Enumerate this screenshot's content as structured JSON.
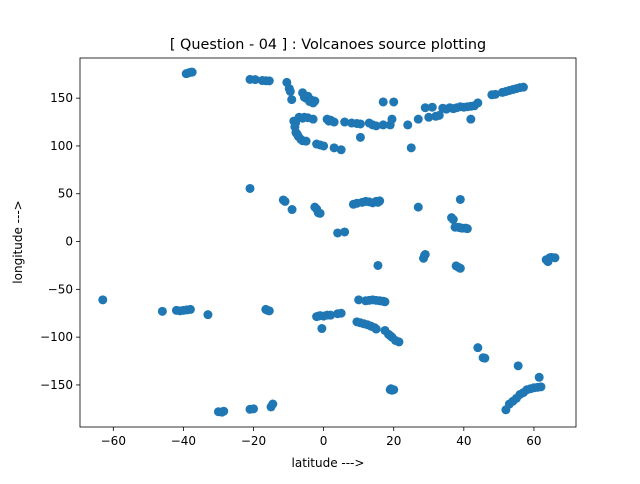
{
  "chart_data": {
    "type": "scatter",
    "title": "[ Question - 04 ] : Volcanoes source plotting",
    "xlabel": "latitude --->",
    "ylabel": "longitude --->",
    "xlim": [
      -69.5,
      72
    ],
    "ylim": [
      -194,
      192
    ],
    "xticks": [
      -60,
      -40,
      -20,
      0,
      20,
      40,
      60
    ],
    "yticks": [
      150,
      100,
      50,
      0,
      -50,
      -100,
      -150
    ],
    "xtick_labels": [
      "−60",
      "−40",
      "−20",
      "0",
      "20",
      "40",
      "60"
    ],
    "ytick_labels": [
      "150",
      "100",
      "50",
      "0",
      "−50",
      "−100",
      "−150"
    ],
    "grid": false,
    "marker_color": "#1f77b4",
    "series": [
      {
        "points": [
          [
            -39.2,
            175.6
          ],
          [
            -38.5,
            176.5
          ],
          [
            -37.9,
            177.1
          ],
          [
            -37.5,
            177.2
          ],
          [
            -21.0,
            169.6
          ],
          [
            -19.5,
            169.4
          ],
          [
            -17.5,
            168.4
          ],
          [
            -16.5,
            168.2
          ],
          [
            -15.5,
            168.1
          ],
          [
            -10.5,
            166.5
          ],
          [
            -9.8,
            160.0
          ],
          [
            -9.5,
            157.0
          ],
          [
            -9.1,
            148.5
          ],
          [
            -6.0,
            155.6
          ],
          [
            -5.5,
            151.0
          ],
          [
            -5.0,
            150.0
          ],
          [
            -4.5,
            152.0
          ],
          [
            -4.0,
            146.5
          ],
          [
            -3.5,
            148.0
          ],
          [
            -3.0,
            145.0
          ],
          [
            -2.5,
            147.0
          ],
          [
            -8.5,
            126.0
          ],
          [
            -8.2,
            120.0
          ],
          [
            -8.0,
            124.0
          ],
          [
            -7.5,
            112.0
          ],
          [
            -7.9,
            114.0
          ],
          [
            -7.2,
            110.0
          ],
          [
            -6.5,
            107.0
          ],
          [
            -6.0,
            105.5
          ],
          [
            -5.0,
            105.0
          ],
          [
            -7.0,
            130.0
          ],
          [
            -6.0,
            129.0
          ],
          [
            -5.5,
            130.0
          ],
          [
            -4.5,
            129.5
          ],
          [
            -3.0,
            128.0
          ],
          [
            -2.0,
            102.0
          ],
          [
            -1.0,
            101.0
          ],
          [
            0.0,
            100.0
          ],
          [
            3.0,
            98.0
          ],
          [
            5.0,
            96.0
          ],
          [
            1.0,
            128.0
          ],
          [
            1.5,
            126.0
          ],
          [
            2.0,
            127.0
          ],
          [
            3.0,
            125.0
          ],
          [
            6.0,
            125.0
          ],
          [
            8.0,
            124.0
          ],
          [
            9.5,
            123.5
          ],
          [
            10.5,
            123.0
          ],
          [
            13.0,
            124.0
          ],
          [
            14.0,
            122.0
          ],
          [
            15.0,
            121.0
          ],
          [
            17.0,
            122.0
          ],
          [
            19.0,
            122.0
          ],
          [
            10.5,
            109.0
          ],
          [
            17.0,
            146.0
          ],
          [
            20.0,
            146.0
          ],
          [
            19.5,
            128.0
          ],
          [
            24.0,
            122.0
          ],
          [
            25.0,
            98.0
          ],
          [
            27.0,
            128.0
          ],
          [
            29.0,
            140.0
          ],
          [
            30.0,
            130.0
          ],
          [
            31.0,
            140.5
          ],
          [
            32.0,
            131.0
          ],
          [
            33.0,
            132.0
          ],
          [
            34.0,
            139.5
          ],
          [
            35.0,
            138.5
          ],
          [
            36.0,
            140.0
          ],
          [
            37.0,
            139.0
          ],
          [
            38.0,
            140.0
          ],
          [
            39.0,
            141.0
          ],
          [
            40.0,
            140.5
          ],
          [
            41.0,
            141.0
          ],
          [
            42.0,
            141.5
          ],
          [
            43.0,
            142.0
          ],
          [
            44.0,
            145.0
          ],
          [
            42.0,
            128.0
          ],
          [
            48.0,
            153.5
          ],
          [
            49.0,
            154.0
          ],
          [
            51.0,
            156.0
          ],
          [
            52.0,
            157.0
          ],
          [
            53.0,
            158.0
          ],
          [
            54.0,
            159.0
          ],
          [
            55.0,
            160.0
          ],
          [
            56.0,
            161.0
          ],
          [
            57.0,
            161.5
          ],
          [
            -21.0,
            55.5
          ],
          [
            -11.5,
            43.5
          ],
          [
            -11.0,
            42.0
          ],
          [
            -9.0,
            33.5
          ],
          [
            -2.5,
            36.0
          ],
          [
            -2.0,
            34.0
          ],
          [
            -1.5,
            30.0
          ],
          [
            -1.0,
            29.5
          ],
          [
            4.0,
            9.0
          ],
          [
            6.0,
            10.0
          ],
          [
            8.5,
            39.0
          ],
          [
            9.5,
            40.0
          ],
          [
            11.0,
            41.0
          ],
          [
            12.0,
            42.0
          ],
          [
            13.0,
            41.5
          ],
          [
            14.0,
            40.5
          ],
          [
            15.0,
            42.0
          ],
          [
            15.5,
            41.0
          ],
          [
            16.0,
            42.5
          ],
          [
            27.0,
            36.0
          ],
          [
            39.0,
            44.0
          ],
          [
            36.5,
            25.0
          ],
          [
            37.0,
            23.0
          ],
          [
            37.5,
            15.0
          ],
          [
            38.5,
            15.0
          ],
          [
            38.8,
            14.5
          ],
          [
            39.5,
            14.0
          ],
          [
            40.5,
            14.0
          ],
          [
            41.0,
            13.5
          ],
          [
            15.5,
            -25.0
          ],
          [
            28.5,
            -17.5
          ],
          [
            28.8,
            -14.5
          ],
          [
            29.0,
            -13.5
          ],
          [
            37.8,
            -25.5
          ],
          [
            38.5,
            -27.0
          ],
          [
            39.0,
            -28.0
          ],
          [
            63.5,
            -19.0
          ],
          [
            64.0,
            -21.0
          ],
          [
            64.5,
            -17.0
          ],
          [
            65.0,
            -16.5
          ],
          [
            66.0,
            -17.0
          ],
          [
            -63.0,
            -61.0
          ],
          [
            -46.0,
            -73.0
          ],
          [
            -42.0,
            -72.0
          ],
          [
            -41.0,
            -72.5
          ],
          [
            -40.0,
            -72.0
          ],
          [
            -39.0,
            -71.5
          ],
          [
            -38.0,
            -71.0
          ],
          [
            -33.0,
            -76.5
          ],
          [
            -16.5,
            -71.0
          ],
          [
            -16.0,
            -72.0
          ],
          [
            -15.5,
            -72.5
          ],
          [
            -2.0,
            -78.5
          ],
          [
            -1.5,
            -78.0
          ],
          [
            -1.0,
            -77.5
          ],
          [
            0.0,
            -78.0
          ],
          [
            1.0,
            -77.0
          ],
          [
            2.0,
            -77.0
          ],
          [
            4.0,
            -75.5
          ],
          [
            5.0,
            -75.0
          ],
          [
            -0.5,
            -91.0
          ],
          [
            9.5,
            -84.0
          ],
          [
            10.5,
            -85.0
          ],
          [
            11.5,
            -86.0
          ],
          [
            12.5,
            -87.0
          ],
          [
            13.5,
            -88.5
          ],
          [
            14.5,
            -90.0
          ],
          [
            15.0,
            -91.5
          ],
          [
            17.5,
            -93.0
          ],
          [
            18.5,
            -97.0
          ],
          [
            19.0,
            -98.5
          ],
          [
            19.5,
            -100.0
          ],
          [
            20.5,
            -103.5
          ],
          [
            21.5,
            -105.0
          ],
          [
            10.0,
            -61.0
          ],
          [
            12.0,
            -62.0
          ],
          [
            13.0,
            -61.5
          ],
          [
            14.0,
            -61.0
          ],
          [
            15.0,
            -61.5
          ],
          [
            16.0,
            -62.0
          ],
          [
            17.0,
            -62.5
          ],
          [
            17.5,
            -63.0
          ],
          [
            19.0,
            -155.0
          ],
          [
            19.5,
            -155.5
          ],
          [
            20.0,
            -155.0
          ],
          [
            19.2,
            -154.0
          ],
          [
            44.0,
            -111.0
          ],
          [
            45.5,
            -121.5
          ],
          [
            46.0,
            -122.0
          ],
          [
            55.5,
            -130.0
          ],
          [
            52.0,
            -176.0
          ],
          [
            53.0,
            -170.0
          ],
          [
            54.0,
            -167.0
          ],
          [
            55.0,
            -164.0
          ],
          [
            56.0,
            -160.0
          ],
          [
            57.0,
            -158.0
          ],
          [
            58.0,
            -155.0
          ],
          [
            59.0,
            -154.0
          ],
          [
            60.0,
            -153.0
          ],
          [
            61.0,
            -152.5
          ],
          [
            62.0,
            -152.0
          ],
          [
            61.5,
            -142.0
          ],
          [
            -21.0,
            -175.5
          ],
          [
            -20.0,
            -175.0
          ],
          [
            -15.0,
            -173.0
          ],
          [
            -14.5,
            -170.0
          ],
          [
            -30.0,
            -178.0
          ],
          [
            -29.0,
            -178.5
          ],
          [
            -28.5,
            -177.5
          ]
        ]
      }
    ]
  }
}
